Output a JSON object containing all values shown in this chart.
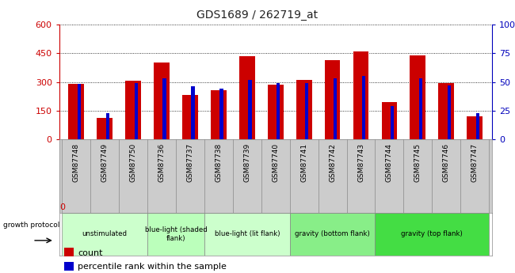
{
  "title": "GDS1689 / 262719_at",
  "samples": [
    "GSM87748",
    "GSM87749",
    "GSM87750",
    "GSM87736",
    "GSM87737",
    "GSM87738",
    "GSM87739",
    "GSM87740",
    "GSM87741",
    "GSM87742",
    "GSM87743",
    "GSM87744",
    "GSM87745",
    "GSM87746",
    "GSM87747"
  ],
  "counts": [
    290,
    110,
    305,
    400,
    230,
    255,
    435,
    285,
    310,
    415,
    460,
    195,
    440,
    295,
    120
  ],
  "percentiles": [
    48,
    23,
    49,
    53,
    46,
    44,
    52,
    49,
    49,
    53,
    55,
    29,
    53,
    47,
    23
  ],
  "group_configs": [
    {
      "label": "unstimulated",
      "start": 0,
      "end": 3,
      "color": "#ccffcc"
    },
    {
      "label": "blue-light (shaded\nflank)",
      "start": 3,
      "end": 5,
      "color": "#bbffbb"
    },
    {
      "label": "blue-light (lit flank)",
      "start": 5,
      "end": 8,
      "color": "#ccffcc"
    },
    {
      "label": "gravity (bottom flank)",
      "start": 8,
      "end": 11,
      "color": "#88ee88"
    },
    {
      "label": "gravity (top flank)",
      "start": 11,
      "end": 15,
      "color": "#44dd44"
    }
  ],
  "ylim_left": [
    0,
    600
  ],
  "ylim_right": [
    0,
    100
  ],
  "yticks_left": [
    0,
    150,
    300,
    450,
    600
  ],
  "yticks_right": [
    0,
    25,
    50,
    75,
    100
  ],
  "bar_color_count": "#cc0000",
  "bar_color_pct": "#0000cc",
  "axis_color_left": "#cc0000",
  "axis_color_right": "#0000bb",
  "growth_protocol_label": "growth protocol",
  "legend_count": "count",
  "legend_pct": "percentile rank within the sample",
  "label_bg_color": "#cccccc",
  "plot_bg_color": "#ffffff"
}
